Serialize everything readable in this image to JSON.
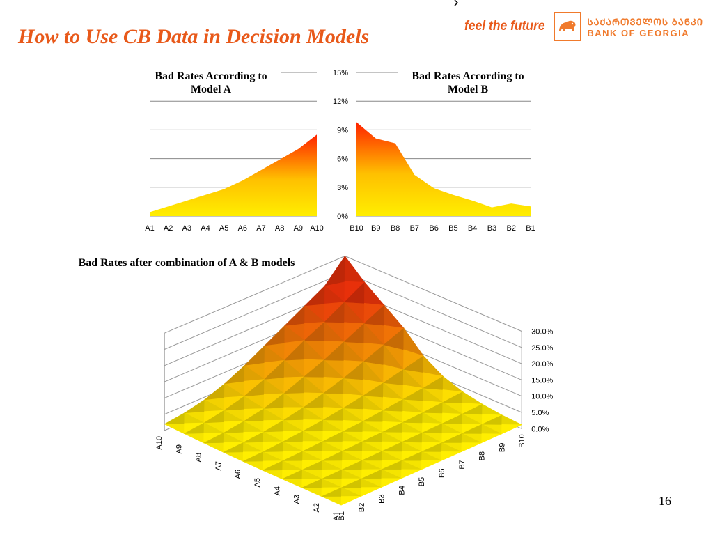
{
  "slide": {
    "title": "How to Use CB Data in Decision Models",
    "page_number": "16",
    "accent_color": "#e8591a"
  },
  "brand": {
    "tagline": "feel the future",
    "name_georgian": "ᲡᲐᲥᲐᲠᲗᲕᲔᲚᲝᲡ ᲑᲐᲜᲙᲘ",
    "name_english": "BANK OF GEORGIA",
    "logo_icon": "lion-icon"
  },
  "chart_data": [
    {
      "type": "area",
      "title": "Bad Rates According to Model A",
      "title_lines": [
        "Bad Rates According to",
        "Model A"
      ],
      "categories": [
        "A1",
        "A2",
        "A3",
        "A4",
        "A5",
        "A6",
        "A7",
        "A8",
        "A9",
        "A10"
      ],
      "values": [
        0.4,
        1.0,
        1.6,
        2.2,
        2.8,
        3.7,
        4.8,
        5.9,
        7.0,
        8.5
      ],
      "unit": "%",
      "ylim": [
        0,
        15
      ],
      "yticks": [
        0,
        3,
        6,
        9,
        12,
        15
      ],
      "grid": true,
      "fill_gradient": [
        "#ffee00",
        "#ff2200"
      ]
    },
    {
      "type": "area",
      "title": "Bad Rates According to Model B",
      "title_lines": [
        "Bad Rates According to",
        "Model B"
      ],
      "categories": [
        "B10",
        "B9",
        "B8",
        "B7",
        "B6",
        "B5",
        "B4",
        "B3",
        "B2",
        "B1"
      ],
      "values": [
        9.8,
        8.1,
        7.6,
        4.3,
        2.9,
        2.2,
        1.6,
        0.9,
        1.3,
        1.0
      ],
      "unit": "%",
      "ylim": [
        0,
        15
      ],
      "yticks": [
        "0%",
        "3%",
        "6%",
        "9%",
        "12%",
        "15%"
      ],
      "grid": true,
      "fill_gradient": [
        "#ffee00",
        "#ff2200"
      ]
    },
    {
      "type": "surface",
      "title": "Bad Rates after combination of A & B models",
      "x_categories": [
        "A1",
        "A2",
        "A3",
        "A4",
        "A5",
        "A6",
        "A7",
        "A8",
        "A9",
        "A10"
      ],
      "y_categories": [
        "B1",
        "B2",
        "B3",
        "B4",
        "B5",
        "B6",
        "B7",
        "B8",
        "B9",
        "B10"
      ],
      "zticks": [
        "0.0%",
        "5.0%",
        "10.0%",
        "15.0%",
        "20.0%",
        "25.0%",
        "30.0%"
      ],
      "zlim": [
        0,
        30
      ],
      "values": [
        [
          0.2,
          0.3,
          0.4,
          0.5,
          0.6,
          0.7,
          0.8,
          0.9,
          1.0,
          1.2
        ],
        [
          0.3,
          0.4,
          0.5,
          0.7,
          0.8,
          0.9,
          1.0,
          1.2,
          1.4,
          1.6
        ],
        [
          0.4,
          0.5,
          0.7,
          0.9,
          1.1,
          1.3,
          1.5,
          1.7,
          2.0,
          2.4
        ],
        [
          0.5,
          0.7,
          0.9,
          1.2,
          1.5,
          1.8,
          2.1,
          2.5,
          3.0,
          3.6
        ],
        [
          0.6,
          0.9,
          1.2,
          1.6,
          2.0,
          2.5,
          3.2,
          4.0,
          4.8,
          5.8
        ],
        [
          0.8,
          1.1,
          1.6,
          2.2,
          3.0,
          4.0,
          5.2,
          6.5,
          8.0,
          9.5
        ],
        [
          1.0,
          1.4,
          2.0,
          3.0,
          4.3,
          6.0,
          8.0,
          10.5,
          13.0,
          15.5
        ],
        [
          1.3,
          1.8,
          2.7,
          4.0,
          6.0,
          8.5,
          11.0,
          14.0,
          17.0,
          20.0
        ],
        [
          1.6,
          2.3,
          3.5,
          5.2,
          7.8,
          11.0,
          14.5,
          17.5,
          21.0,
          24.5
        ],
        [
          2.0,
          2.8,
          4.2,
          6.5,
          9.5,
          13.0,
          16.5,
          20.0,
          23.5,
          30.0
        ]
      ],
      "color_low": "#ffee00",
      "color_high": "#e8300a"
    }
  ]
}
